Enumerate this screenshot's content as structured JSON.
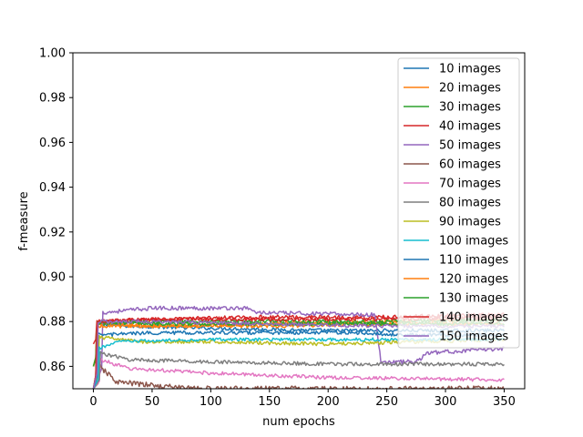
{
  "chart_data": {
    "type": "line",
    "title": "",
    "xlabel": "num epochs",
    "ylabel": "f-measure",
    "xlim": [
      -17.5,
      367.5
    ],
    "ylim": [
      0.85,
      1.0
    ],
    "xticks": [
      0,
      50,
      100,
      150,
      200,
      250,
      300,
      350
    ],
    "yticks": [
      0.86,
      0.88,
      0.9,
      0.92,
      0.94,
      0.96,
      0.98,
      1.0
    ],
    "grid": false,
    "legend_position": "upper-right",
    "x_start": 0,
    "x_end": 350,
    "series": [
      {
        "name": "10 images",
        "color": "#1f77b4",
        "start": 0.85,
        "jump_at": 3,
        "profile": [
          [
            3,
            0.879
          ],
          [
            30,
            0.878
          ],
          [
            100,
            0.877
          ],
          [
            200,
            0.876
          ],
          [
            350,
            0.876
          ]
        ],
        "noise": 0.0008
      },
      {
        "name": "20 images",
        "color": "#ff7f0e",
        "start": 0.86,
        "jump_at": 3,
        "profile": [
          [
            3,
            0.879
          ],
          [
            50,
            0.878
          ],
          [
            150,
            0.879
          ],
          [
            250,
            0.88
          ],
          [
            350,
            0.881
          ]
        ],
        "noise": 0.0008
      },
      {
        "name": "30 images",
        "color": "#2ca02c",
        "start": 0.85,
        "jump_at": 3,
        "profile": [
          [
            3,
            0.879
          ],
          [
            50,
            0.88
          ],
          [
            150,
            0.88
          ],
          [
            250,
            0.88
          ],
          [
            350,
            0.881
          ]
        ],
        "noise": 0.0009
      },
      {
        "name": "40 images",
        "color": "#d62728",
        "start": 0.87,
        "jump_at": 3,
        "profile": [
          [
            3,
            0.88
          ],
          [
            50,
            0.881
          ],
          [
            150,
            0.882
          ],
          [
            250,
            0.882
          ],
          [
            350,
            0.883
          ]
        ],
        "noise": 0.0009
      },
      {
        "name": "50 images",
        "color": "#9467bd",
        "start": 0.85,
        "jump_at": 8,
        "profile": [
          [
            8,
            0.884
          ],
          [
            50,
            0.886
          ],
          [
            130,
            0.886
          ],
          [
            140,
            0.884
          ],
          [
            240,
            0.883
          ],
          [
            245,
            0.862
          ],
          [
            275,
            0.862
          ],
          [
            285,
            0.866
          ],
          [
            350,
            0.868
          ]
        ],
        "noise": 0.0009
      },
      {
        "name": "60 images",
        "color": "#8c564b",
        "start": 0.85,
        "jump_at": 5,
        "profile": [
          [
            5,
            0.86
          ],
          [
            20,
            0.853
          ],
          [
            60,
            0.851
          ],
          [
            100,
            0.85
          ],
          [
            350,
            0.85
          ]
        ],
        "noise": 0.0012
      },
      {
        "name": "70 images",
        "color": "#e377c2",
        "start": 0.85,
        "jump_at": 6,
        "profile": [
          [
            6,
            0.863
          ],
          [
            30,
            0.859
          ],
          [
            100,
            0.857
          ],
          [
            200,
            0.855
          ],
          [
            350,
            0.854
          ]
        ],
        "noise": 0.0008
      },
      {
        "name": "80 images",
        "color": "#7f7f7f",
        "start": 0.85,
        "jump_at": 6,
        "profile": [
          [
            6,
            0.866
          ],
          [
            30,
            0.863
          ],
          [
            100,
            0.862
          ],
          [
            200,
            0.861
          ],
          [
            350,
            0.861
          ]
        ],
        "noise": 0.0008
      },
      {
        "name": "90 images",
        "color": "#bcbd22",
        "start": 0.85,
        "jump_at": 5,
        "profile": [
          [
            5,
            0.873
          ],
          [
            40,
            0.871
          ],
          [
            100,
            0.871
          ],
          [
            200,
            0.87
          ],
          [
            350,
            0.872
          ]
        ],
        "noise": 0.0008
      },
      {
        "name": "100 images",
        "color": "#17becf",
        "start": 0.85,
        "jump_at": 5,
        "profile": [
          [
            5,
            0.868
          ],
          [
            20,
            0.871
          ],
          [
            100,
            0.872
          ],
          [
            200,
            0.872
          ],
          [
            350,
            0.872
          ]
        ],
        "noise": 0.0007
      },
      {
        "name": "110 images",
        "color": "#1f77b4",
        "start": 0.85,
        "jump_at": 4,
        "profile": [
          [
            4,
            0.874
          ],
          [
            50,
            0.875
          ],
          [
            150,
            0.875
          ],
          [
            230,
            0.875
          ],
          [
            260,
            0.874
          ],
          [
            350,
            0.874
          ]
        ],
        "noise": 0.0008
      },
      {
        "name": "120 images",
        "color": "#ff7f0e",
        "start": 0.86,
        "jump_at": 3,
        "profile": [
          [
            3,
            0.878
          ],
          [
            50,
            0.878
          ],
          [
            150,
            0.878
          ],
          [
            250,
            0.879
          ],
          [
            350,
            0.879
          ]
        ],
        "noise": 0.0008
      },
      {
        "name": "130 images",
        "color": "#2ca02c",
        "start": 0.86,
        "jump_at": 3,
        "profile": [
          [
            3,
            0.88
          ],
          [
            50,
            0.879
          ],
          [
            150,
            0.879
          ],
          [
            250,
            0.879
          ],
          [
            350,
            0.879
          ]
        ],
        "noise": 0.0008
      },
      {
        "name": "140 images",
        "color": "#d62728",
        "start": 0.85,
        "jump_at": 3,
        "profile": [
          [
            3,
            0.88
          ],
          [
            50,
            0.881
          ],
          [
            150,
            0.881
          ],
          [
            250,
            0.881
          ],
          [
            350,
            0.882
          ]
        ],
        "noise": 0.0008
      },
      {
        "name": "150 images",
        "color": "#9467bd",
        "start": 0.85,
        "jump_at": 4,
        "profile": [
          [
            4,
            0.88
          ],
          [
            50,
            0.88
          ],
          [
            150,
            0.879
          ],
          [
            250,
            0.878
          ],
          [
            350,
            0.878
          ]
        ],
        "noise": 0.0008
      }
    ]
  }
}
